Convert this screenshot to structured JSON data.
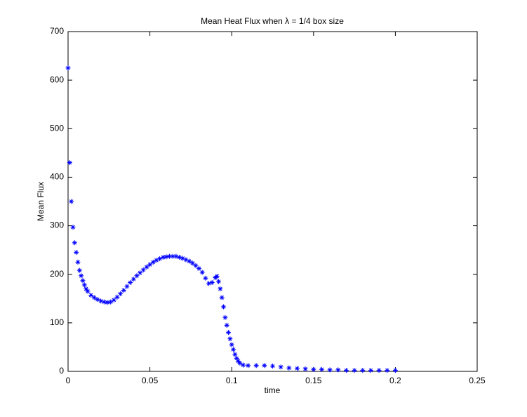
{
  "chart_data": {
    "type": "scatter",
    "title": "Mean Heat Flux when λ = 1/4 box size",
    "x_label": "time",
    "y_label": "Mean Flux",
    "marker": "*",
    "xlim": [
      0,
      0.25
    ],
    "xticks": [
      0,
      0.05,
      0.1,
      0.15,
      0.2,
      0.25
    ],
    "ylim": [
      0,
      700
    ],
    "yticks": [
      0,
      100,
      200,
      300,
      400,
      500,
      600,
      700
    ],
    "series": [
      {
        "color": "#0000ff",
        "x": [
          0,
          0.001,
          0.002,
          0.003,
          0.004,
          0.005,
          0.006,
          0.007,
          0.008,
          0.009,
          0.01,
          0.011,
          0.012,
          0.014,
          0.016,
          0.018,
          0.02,
          0.022,
          0.024,
          0.026,
          0.028,
          0.03,
          0.032,
          0.034,
          0.036,
          0.038,
          0.04,
          0.042,
          0.044,
          0.046,
          0.048,
          0.05,
          0.052,
          0.054,
          0.056,
          0.058,
          0.06,
          0.062,
          0.064,
          0.066,
          0.068,
          0.07,
          0.072,
          0.074,
          0.076,
          0.078,
          0.08,
          0.082,
          0.084,
          0.086,
          0.088,
          0.09,
          0.091,
          0.092,
          0.093,
          0.094,
          0.095,
          0.096,
          0.097,
          0.098,
          0.099,
          0.1,
          0.101,
          0.102,
          0.103,
          0.104,
          0.105,
          0.107,
          0.11,
          0.115,
          0.12,
          0.125,
          0.13,
          0.135,
          0.14,
          0.145,
          0.15,
          0.155,
          0.16,
          0.165,
          0.17,
          0.175,
          0.18,
          0.185,
          0.19,
          0.195,
          0.2
        ],
        "values": [
          625,
          430,
          350,
          297,
          265,
          245,
          225,
          208,
          197,
          187,
          178,
          170,
          165,
          157,
          152,
          148,
          145,
          143,
          142,
          143,
          147,
          153,
          160,
          167,
          175,
          183,
          190,
          197,
          203,
          209,
          215,
          220,
          225,
          229,
          232,
          235,
          236,
          237,
          237,
          237,
          235,
          233,
          230,
          227,
          223,
          218,
          212,
          204,
          192,
          181,
          183,
          193,
          196,
          185,
          170,
          152,
          133,
          111,
          95,
          80,
          67,
          55,
          45,
          35,
          27,
          21,
          17,
          13,
          12,
          12,
          12,
          11,
          9,
          7,
          6,
          5,
          4,
          4,
          3,
          3,
          2,
          2,
          2,
          2,
          2,
          2,
          2
        ]
      }
    ]
  }
}
